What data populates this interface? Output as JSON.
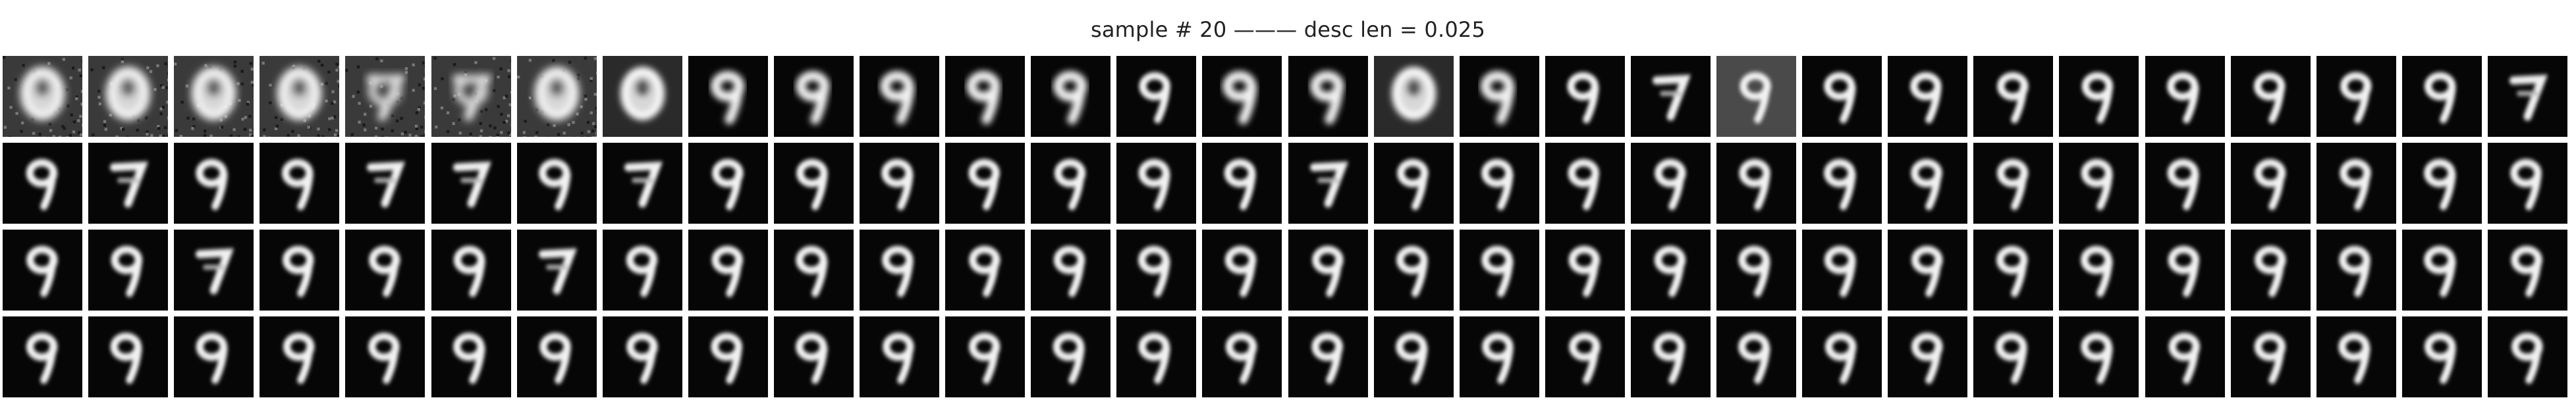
{
  "title": "sample # 20 ——— desc len = 0.025",
  "grid": {
    "rows": 4,
    "cols": 30,
    "tiles": [
      [
        "noisy-blob",
        "noisy-blob",
        "noisy-blob",
        "noisy-blob",
        "noisy-mixed",
        "noisy-mixed",
        "noisy-blob",
        "blurry-blob",
        "blurry-nine",
        "blurry-nine",
        "blurry-nine",
        "blurry-nine",
        "blurry-nine",
        "nine",
        "blurry-nine",
        "blurry-nine",
        "blurry-blob",
        "blurry-nine",
        "nine",
        "seven",
        "nine-grey",
        "nine",
        "nine",
        "nine",
        "nine",
        "nine",
        "nine",
        "nine",
        "nine",
        "seven"
      ],
      [
        "nine",
        "seven",
        "nine",
        "nine",
        "seven",
        "seven",
        "nine",
        "seven",
        "nine",
        "nine",
        "nine",
        "nine",
        "nine",
        "nine",
        "nine",
        "seven",
        "nine",
        "nine",
        "nine",
        "nine",
        "nine",
        "nine",
        "nine",
        "nine",
        "nine",
        "nine",
        "nine",
        "nine",
        "nine",
        "nine"
      ],
      [
        "nine",
        "nine",
        "seven",
        "nine",
        "nine",
        "nine",
        "seven",
        "nine",
        "nine",
        "nine",
        "nine",
        "nine",
        "nine",
        "nine",
        "nine",
        "nine",
        "nine",
        "nine",
        "nine",
        "nine",
        "nine",
        "nine",
        "nine",
        "nine",
        "nine",
        "nine",
        "nine",
        "nine",
        "nine",
        "nine"
      ],
      [
        "nine",
        "nine",
        "nine",
        "nine",
        "nine",
        "nine",
        "nine",
        "nine",
        "nine",
        "nine",
        "nine",
        "nine",
        "nine",
        "nine",
        "nine",
        "nine",
        "nine",
        "nine",
        "nine",
        "nine",
        "nine",
        "nine",
        "nine",
        "nine",
        "nine",
        "nine",
        "nine",
        "nine",
        "nine",
        "nine"
      ]
    ]
  }
}
